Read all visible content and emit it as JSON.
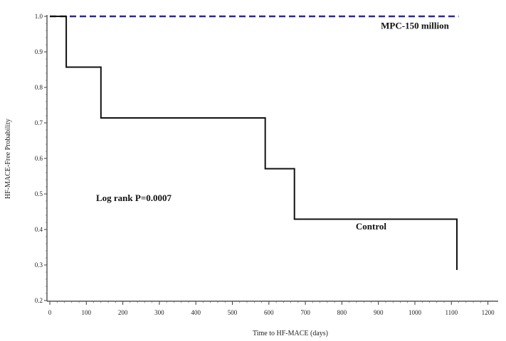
{
  "chart_data": {
    "type": "line",
    "title": "",
    "xlabel": "Time to HF-MACE (days)",
    "ylabel": "HF-MACE-Free Probability",
    "xlim": [
      0,
      1200
    ],
    "ylim": [
      0.2,
      1.0
    ],
    "x_ticks": [
      0,
      100,
      200,
      300,
      400,
      500,
      600,
      700,
      800,
      900,
      1000,
      1100,
      1200
    ],
    "y_ticks": [
      0.2,
      0.3,
      0.4,
      0.5,
      0.6,
      0.7,
      0.8,
      0.9,
      1.0
    ],
    "y_tick_labels": [
      "0.2",
      "0.3",
      "0.4",
      "0.5",
      "0.6",
      "0.7",
      "0.8",
      "0.9",
      "1.0"
    ],
    "grid": false,
    "series": [
      {
        "name": "MPC-150 million",
        "style": "dashed",
        "color": "#2a2a8c",
        "step": true,
        "x": [
          0,
          1120
        ],
        "y": [
          1.0,
          1.0
        ]
      },
      {
        "name": "Control",
        "style": "solid",
        "color": "#111111",
        "step": true,
        "x": [
          0,
          45,
          140,
          590,
          670,
          1115
        ],
        "y": [
          1.0,
          0.857,
          0.714,
          0.571,
          0.429,
          0.286
        ]
      }
    ],
    "annotations": [
      {
        "text": "MPC-150 million",
        "x": 1000,
        "y": 0.965
      },
      {
        "text": "Control",
        "x": 880,
        "y": 0.4
      },
      {
        "text": "Log rank P=0.0007",
        "x": 230,
        "y": 0.48
      }
    ]
  }
}
